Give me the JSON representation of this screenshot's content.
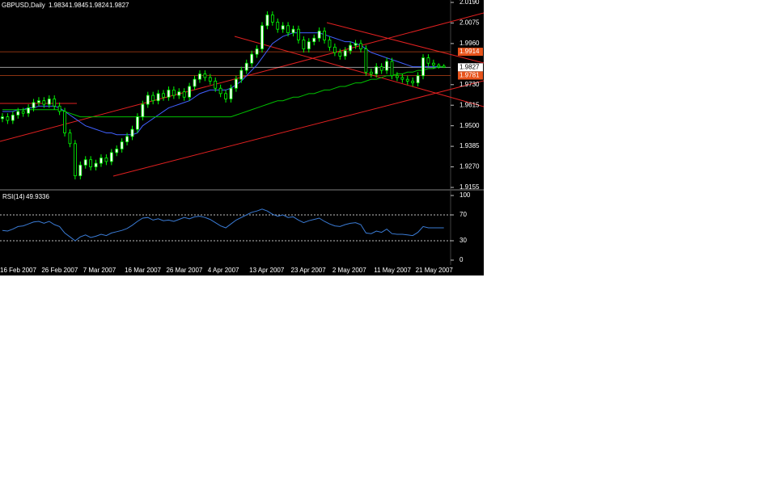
{
  "chart_data": [
    {
      "type": "candlestick",
      "title": "GBPUSD,Daily",
      "categories": [
        "16 Feb 2007",
        null,
        null,
        null,
        null,
        null,
        null,
        null,
        "26 Feb 2007",
        null,
        null,
        null,
        null,
        null,
        null,
        null,
        "7 Mar 2007",
        null,
        null,
        null,
        null,
        null,
        null,
        null,
        "16 Mar 2007",
        null,
        null,
        null,
        null,
        null,
        null,
        null,
        "26 Mar 2007",
        null,
        null,
        null,
        null,
        null,
        null,
        null,
        "4 Apr 2007",
        null,
        null,
        null,
        null,
        null,
        null,
        null,
        "13 Apr 2007",
        null,
        null,
        null,
        null,
        null,
        null,
        null,
        "23 Apr 2007",
        null,
        null,
        null,
        null,
        null,
        null,
        null,
        "2 May 2007",
        null,
        null,
        null,
        null,
        null,
        null,
        null,
        "11 May 2007",
        null,
        null,
        null,
        null,
        null,
        null,
        null,
        "21 May 2007",
        null,
        null,
        null,
        null,
        null
      ],
      "open": [
        1.954,
        1.955,
        1.953,
        1.956,
        1.958,
        1.957,
        1.96,
        1.963,
        1.964,
        1.962,
        1.965,
        1.961,
        1.958,
        1.946,
        1.94,
        1.922,
        1.928,
        1.931,
        1.927,
        1.929,
        1.932,
        1.93,
        1.935,
        1.937,
        1.941,
        1.944,
        1.948,
        1.955,
        1.962,
        1.967,
        1.964,
        1.968,
        1.966,
        1.97,
        1.967,
        1.969,
        1.966,
        1.972,
        1.976,
        1.979,
        1.977,
        1.975,
        1.971,
        1.968,
        1.965,
        1.971,
        1.976,
        1.981,
        1.985,
        1.99,
        1.993,
        2.006,
        2.012,
        2.008,
        2.004,
        2.006,
        2.002,
        2.004,
        1.998,
        1.993,
        1.997,
        1.999,
        2.003,
        1.998,
        1.994,
        1.991,
        1.989,
        1.992,
        1.995,
        1.996,
        1.993,
        1.98,
        1.979,
        1.983,
        1.981,
        1.986,
        1.978,
        1.977,
        1.976,
        1.975,
        1.974,
        1.978,
        1.988,
        1.985,
        1.984,
        1.9834
      ],
      "high": [
        1.957,
        1.957,
        1.958,
        1.96,
        1.96,
        1.962,
        1.965,
        1.966,
        1.966,
        1.967,
        1.967,
        1.963,
        1.96,
        1.948,
        1.942,
        1.93,
        1.933,
        1.933,
        1.931,
        1.934,
        1.934,
        1.937,
        1.939,
        1.943,
        1.946,
        1.95,
        1.957,
        1.964,
        1.969,
        1.969,
        1.97,
        1.97,
        1.972,
        1.972,
        1.971,
        1.971,
        1.974,
        1.978,
        1.981,
        1.981,
        1.979,
        1.977,
        1.973,
        1.97,
        1.973,
        1.978,
        1.983,
        1.987,
        1.992,
        1.995,
        2.008,
        2.014,
        2.014,
        2.01,
        2.008,
        2.008,
        2.006,
        2.006,
        2.0,
        1.999,
        2.001,
        2.005,
        2.005,
        2.0,
        1.996,
        1.993,
        1.994,
        1.997,
        1.998,
        1.998,
        1.995,
        1.982,
        1.985,
        1.985,
        1.988,
        1.988,
        1.98,
        1.979,
        1.978,
        1.977,
        1.98,
        1.99,
        1.99,
        1.987,
        1.985,
        1.9845
      ],
      "low": [
        1.952,
        1.951,
        1.951,
        1.954,
        1.955,
        1.955,
        1.958,
        1.961,
        1.96,
        1.96,
        1.959,
        1.956,
        1.944,
        1.938,
        1.92,
        1.92,
        1.926,
        1.925,
        1.925,
        1.927,
        1.928,
        1.928,
        1.933,
        1.935,
        1.939,
        1.942,
        1.946,
        1.953,
        1.96,
        1.962,
        1.962,
        1.964,
        1.964,
        1.965,
        1.965,
        1.964,
        1.964,
        1.97,
        1.974,
        1.975,
        1.973,
        1.969,
        1.966,
        1.963,
        1.963,
        1.969,
        1.974,
        1.979,
        1.983,
        1.988,
        1.991,
        2.004,
        2.006,
        2.002,
        2.002,
        2.0,
        2.0,
        1.996,
        1.991,
        1.991,
        1.995,
        1.997,
        1.996,
        1.992,
        1.989,
        1.987,
        1.987,
        1.99,
        1.993,
        1.991,
        1.978,
        1.977,
        1.977,
        1.979,
        1.979,
        1.976,
        1.975,
        1.974,
        1.973,
        1.972,
        1.972,
        1.976,
        1.983,
        1.982,
        1.982,
        1.9824
      ],
      "close": [
        1.955,
        1.953,
        1.956,
        1.958,
        1.957,
        1.96,
        1.963,
        1.964,
        1.962,
        1.965,
        1.961,
        1.958,
        1.946,
        1.94,
        1.922,
        1.928,
        1.931,
        1.927,
        1.929,
        1.932,
        1.93,
        1.935,
        1.937,
        1.941,
        1.944,
        1.948,
        1.955,
        1.962,
        1.967,
        1.964,
        1.968,
        1.966,
        1.97,
        1.967,
        1.969,
        1.966,
        1.972,
        1.976,
        1.979,
        1.977,
        1.975,
        1.971,
        1.968,
        1.965,
        1.971,
        1.976,
        1.981,
        1.985,
        1.99,
        1.993,
        2.006,
        2.012,
        2.008,
        2.004,
        2.006,
        2.002,
        2.004,
        1.998,
        1.993,
        1.997,
        1.999,
        2.003,
        1.998,
        1.994,
        1.991,
        1.989,
        1.992,
        1.995,
        1.996,
        1.993,
        1.98,
        1.979,
        1.983,
        1.981,
        1.986,
        1.978,
        1.977,
        1.976,
        1.975,
        1.974,
        1.978,
        1.988,
        1.985,
        1.984,
        1.983,
        1.9827
      ],
      "candle_color": "#00ff00",
      "series": [
        {
          "color": "#4060ff",
          "values": [
            1.958,
            1.958,
            1.958,
            1.959,
            1.959,
            1.96,
            1.96,
            1.961,
            1.961,
            1.961,
            1.961,
            1.96,
            1.958,
            1.956,
            1.954,
            1.952,
            1.95,
            1.949,
            1.948,
            1.947,
            1.946,
            1.946,
            1.945,
            1.945,
            1.945,
            1.945,
            1.946,
            1.95,
            1.952,
            1.954,
            1.956,
            1.958,
            1.96,
            1.961,
            1.962,
            1.963,
            1.964,
            1.966,
            1.968,
            1.969,
            1.97,
            1.97,
            1.97,
            1.97,
            1.971,
            1.973,
            1.975,
            1.978,
            1.981,
            1.984,
            1.988,
            1.992,
            1.996,
            1.998,
            2.0,
            2.001,
            2.002,
            2.002,
            2.002,
            2.002,
            2.002,
            2.002,
            2.001,
            2.0,
            1.999,
            1.998,
            1.997,
            1.997,
            1.996,
            1.995,
            1.993,
            1.991,
            1.99,
            1.989,
            1.988,
            1.987,
            1.986,
            1.985,
            1.984,
            1.983,
            1.983,
            1.983,
            1.983,
            1.983,
            1.983,
            1.983
          ]
        },
        {
          "color": "#00c000",
          "values": [
            1.959,
            1.959,
            1.959,
            1.959,
            1.959,
            1.959,
            1.959,
            1.959,
            1.959,
            1.959,
            1.959,
            1.959,
            1.958,
            1.957,
            1.956,
            1.955,
            1.955,
            1.955,
            1.955,
            1.955,
            1.955,
            1.955,
            1.955,
            1.955,
            1.955,
            1.955,
            1.955,
            1.955,
            1.955,
            1.955,
            1.955,
            1.955,
            1.955,
            1.955,
            1.955,
            1.955,
            1.955,
            1.955,
            1.955,
            1.955,
            1.955,
            1.955,
            1.955,
            1.955,
            1.955,
            1.956,
            1.957,
            1.958,
            1.959,
            1.96,
            1.961,
            1.962,
            1.963,
            1.964,
            1.964,
            1.965,
            1.966,
            1.966,
            1.967,
            1.968,
            1.968,
            1.969,
            1.97,
            1.97,
            1.971,
            1.972,
            1.972,
            1.973,
            1.974,
            1.974,
            1.975,
            1.976,
            1.976,
            1.977,
            1.978,
            1.978,
            1.979,
            1.979,
            1.98,
            1.98,
            1.981,
            1.981,
            1.982,
            1.982,
            1.983,
            1.983
          ]
        }
      ],
      "ylim": [
        1.9155,
        2.019
      ],
      "yticks": [
        {
          "value": 2.019,
          "label": "2.0190"
        },
        2.0075,
        {
          "value": 1.996,
          "label": "1.9960"
        },
        {
          "value": 1.973,
          "label": "1.9730"
        },
        1.9615,
        {
          "value": 1.95,
          "label": "1.9500"
        },
        1.9385,
        {
          "value": 1.927,
          "label": "1.9270"
        },
        1.9155
      ],
      "levels": [
        {
          "value": 1.9914,
          "color": "#e8541c"
        },
        {
          "value": 1.9827,
          "color": "#ffffff"
        },
        {
          "value": 1.9781,
          "color": "#e8541c"
        }
      ]
    },
    {
      "type": "line",
      "title": "RSI(14)",
      "color": "#3a7bd5",
      "values": [
        46,
        45,
        48,
        52,
        53,
        56,
        59,
        60,
        57,
        60,
        55,
        52,
        42,
        36,
        30,
        36,
        39,
        35,
        37,
        40,
        38,
        42,
        44,
        46,
        49,
        54,
        60,
        65,
        66,
        62,
        64,
        61,
        62,
        60,
        63,
        66,
        64,
        67,
        68,
        66,
        63,
        58,
        53,
        50,
        56,
        62,
        66,
        70,
        74,
        76,
        79,
        76,
        71,
        68,
        70,
        66,
        67,
        62,
        58,
        61,
        63,
        65,
        60,
        56,
        53,
        52,
        55,
        57,
        58,
        55,
        42,
        41,
        45,
        43,
        48,
        41,
        40,
        40,
        39,
        38,
        43,
        52,
        50,
        50,
        50,
        49.9336
      ],
      "ylim": [
        0,
        100
      ],
      "yticks": [
        100,
        70,
        30,
        0
      ]
    }
  ]
}
